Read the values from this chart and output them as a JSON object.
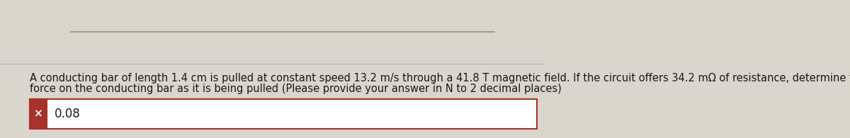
{
  "question_text_line1": "A conducting bar of length 1.4 cm is pulled at constant speed 13.2 m/s through a 41.8 T magnetic field. If the circuit offers 34.2 mΩ of resistance, determine the magnitude of the",
  "question_text_line2": "force on the conducting bar as it is being pulled (Please provide your answer in N to 2 decimal places)",
  "answer_value": "0.08",
  "bg_color": "#d9d6ce",
  "answer_box_bg": "#ffffff",
  "answer_box_border": "#a63228",
  "x_mark_bg": "#a63228",
  "x_mark_color": "#ffffff",
  "text_color": "#1a1a1a",
  "answer_text_color": "#1a1a1a",
  "separator_color": "#7a9e7e",
  "separator_color2": "#b0b0a8",
  "font_size_question": 10.5,
  "font_size_answer": 12,
  "fig_width": 12.0,
  "fig_height": 1.95,
  "fig_dpi": 100
}
